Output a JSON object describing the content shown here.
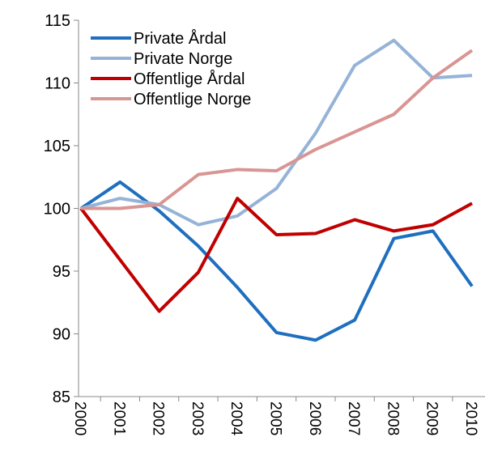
{
  "chart_data": {
    "type": "line",
    "categories": [
      "2000",
      "2001",
      "2002",
      "2003",
      "2004",
      "2005",
      "2006",
      "2007",
      "2008",
      "2009",
      "2010"
    ],
    "series": [
      {
        "name": "Private Årdal",
        "color": "#1f6fbf",
        "values": [
          100,
          102.1,
          99.8,
          97,
          93.7,
          90.1,
          89.5,
          91.1,
          97.6,
          98.2,
          93.8
        ]
      },
      {
        "name": "Private Norge",
        "color": "#95b3d7",
        "values": [
          100,
          100.8,
          100.3,
          98.7,
          99.4,
          101.6,
          106,
          111.4,
          113.4,
          110.4,
          110.6
        ]
      },
      {
        "name": "Offentlige Årdal",
        "color": "#c00000",
        "values": [
          100,
          95.9,
          91.8,
          94.9,
          100.8,
          97.9,
          98,
          99.1,
          98.2,
          98.7,
          100.4
        ]
      },
      {
        "name": "Offentlige Norge",
        "color": "#d99594",
        "values": [
          100,
          100,
          100.3,
          102.7,
          103.1,
          103,
          104.7,
          106.1,
          107.5,
          110.4,
          112.6
        ]
      }
    ],
    "ylim": [
      85,
      115
    ],
    "yticks": [
      85,
      90,
      95,
      100,
      105,
      110,
      115
    ],
    "grid": false,
    "legend": "top-left"
  }
}
